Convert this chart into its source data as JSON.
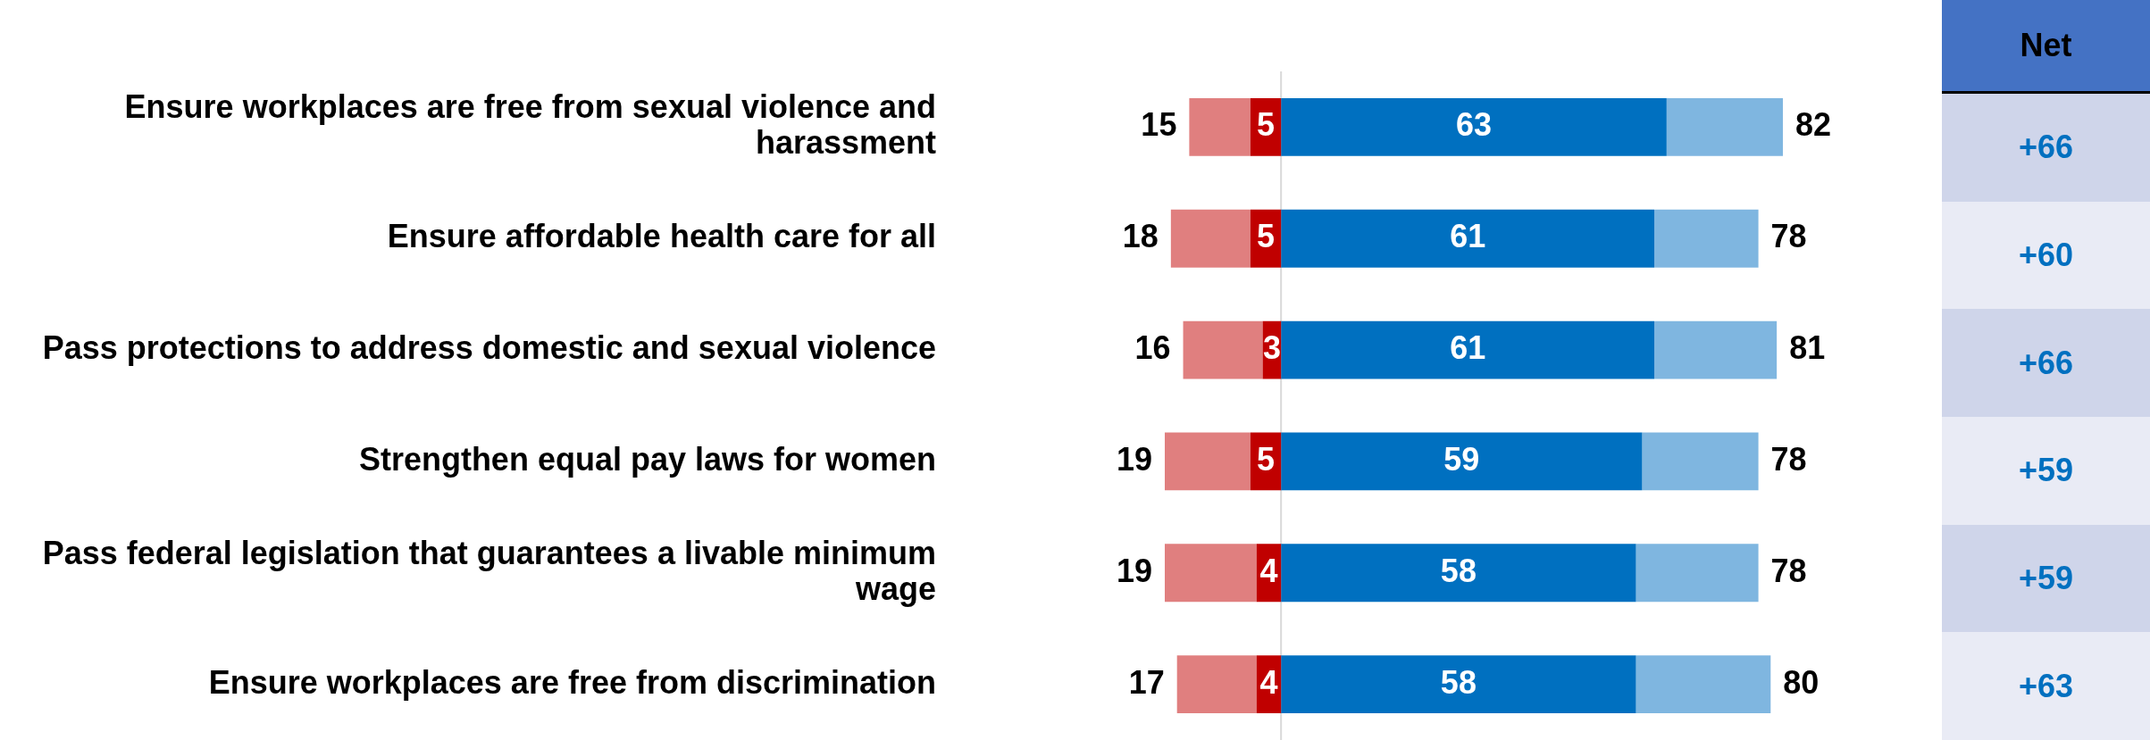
{
  "chart_data": {
    "type": "bar",
    "orientation": "horizontal",
    "stacked": true,
    "legend": false,
    "categories": [
      "Ensure workplaces are free from sexual violence and harassment",
      "Ensure affordable health care for all",
      "Pass protections to address domestic and sexual violence",
      "Strengthen equal pay laws for women",
      "Pass federal legislation that guarantees a livable minimum wage",
      "Ensure workplaces are free from discrimination"
    ],
    "series": [
      {
        "color": "#c00000",
        "values": [
          -5,
          -5,
          -3,
          -5,
          -4,
          -4
        ]
      },
      {
        "color": "#e07f7f",
        "values": [
          -10,
          -13,
          -13,
          -14,
          -15,
          -13
        ]
      },
      {
        "color": "#0070c0",
        "values": [
          63,
          61,
          61,
          59,
          58,
          58
        ],
        "value_labels": [
          "63",
          "61",
          "61",
          "59",
          "58",
          "58"
        ]
      },
      {
        "color": "#7fb6e0",
        "values": [
          19,
          17,
          20,
          19,
          20,
          22
        ]
      }
    ],
    "ref_lines": [
      {
        "axis": "x",
        "value": 0,
        "color": "#d9d9d9"
      }
    ],
    "annotations": [
      "Net",
      "+66",
      "+60",
      "+66",
      "+59",
      "+59",
      "+63",
      "5",
      "5",
      "3",
      "5",
      "4",
      "4",
      "15",
      "18",
      "16",
      "19",
      "19",
      "17",
      "82",
      "78",
      "81",
      "78",
      "78",
      "80"
    ]
  }
}
